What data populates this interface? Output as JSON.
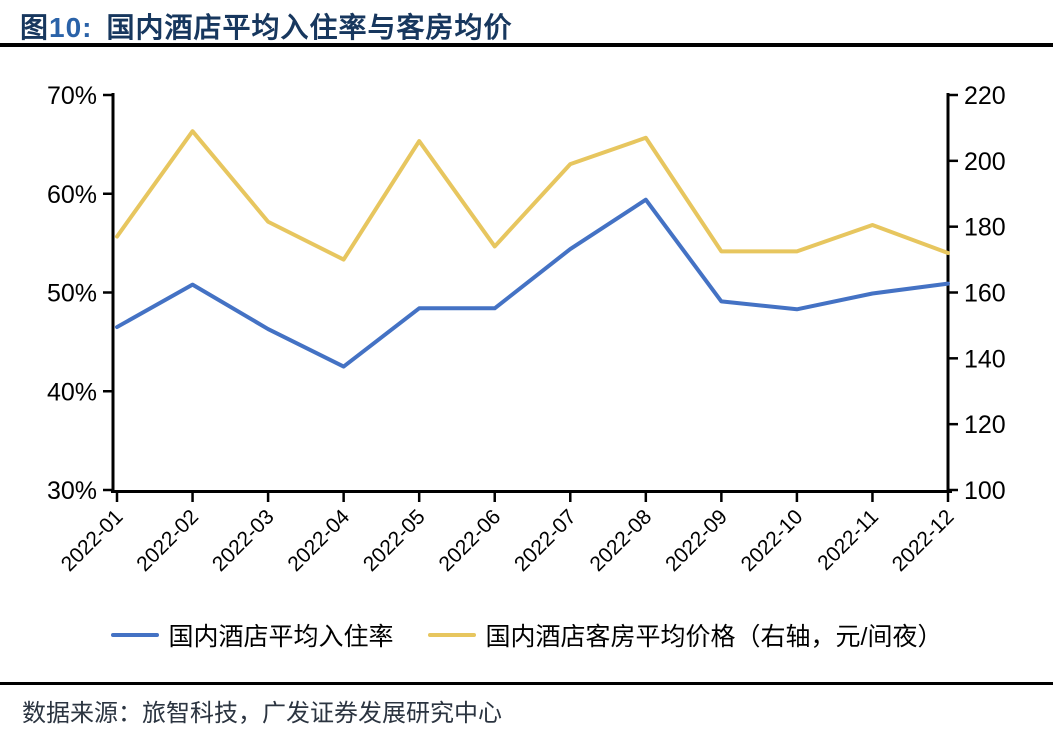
{
  "header": {
    "figure_prefix": "图",
    "figure_number": "10:",
    "title": "国内酒店平均入住率与客房均价"
  },
  "colors": {
    "title_navy": "#17375E",
    "figure_number_blue": "#2A62A8",
    "axis_black": "#000000",
    "line_blue": "#4472C4",
    "line_yellow": "#E7C65F"
  },
  "chart_data": {
    "type": "line",
    "title": "国内酒店平均入住率与客房均价",
    "categories": [
      "2022-01",
      "2022-02",
      "2022-03",
      "2022-04",
      "2022-05",
      "2022-06",
      "2022-07",
      "2022-08",
      "2022-09",
      "2022-10",
      "2022-11",
      "2022-12"
    ],
    "series": [
      {
        "name": "国内酒店平均入住率",
        "axis": "left",
        "unit": "%",
        "color": "#4472C4",
        "values": [
          46.5,
          50.8,
          46.3,
          42.5,
          48.4,
          48.4,
          54.4,
          59.4,
          49.1,
          48.3,
          49.9,
          50.9
        ]
      },
      {
        "name": "国内酒店客房平均价格（右轴，元/间夜）",
        "axis": "right",
        "unit": "元/间夜",
        "color": "#E7C65F",
        "values": [
          177,
          209,
          181.5,
          170,
          206,
          174,
          199,
          207,
          172.5,
          172.5,
          180.5,
          172
        ]
      }
    ],
    "left_axis": {
      "tick_labels": [
        "70%",
        "60%",
        "50%",
        "40%",
        "30%"
      ],
      "min": 30,
      "max": 70
    },
    "right_axis": {
      "tick_labels": [
        "220",
        "200",
        "180",
        "160",
        "140",
        "120",
        "100"
      ],
      "min": 100,
      "max": 220
    },
    "grid": false,
    "legend_position": "bottom"
  },
  "footer": {
    "source": "数据来源：旅智科技，广发证券发展研究中心"
  }
}
